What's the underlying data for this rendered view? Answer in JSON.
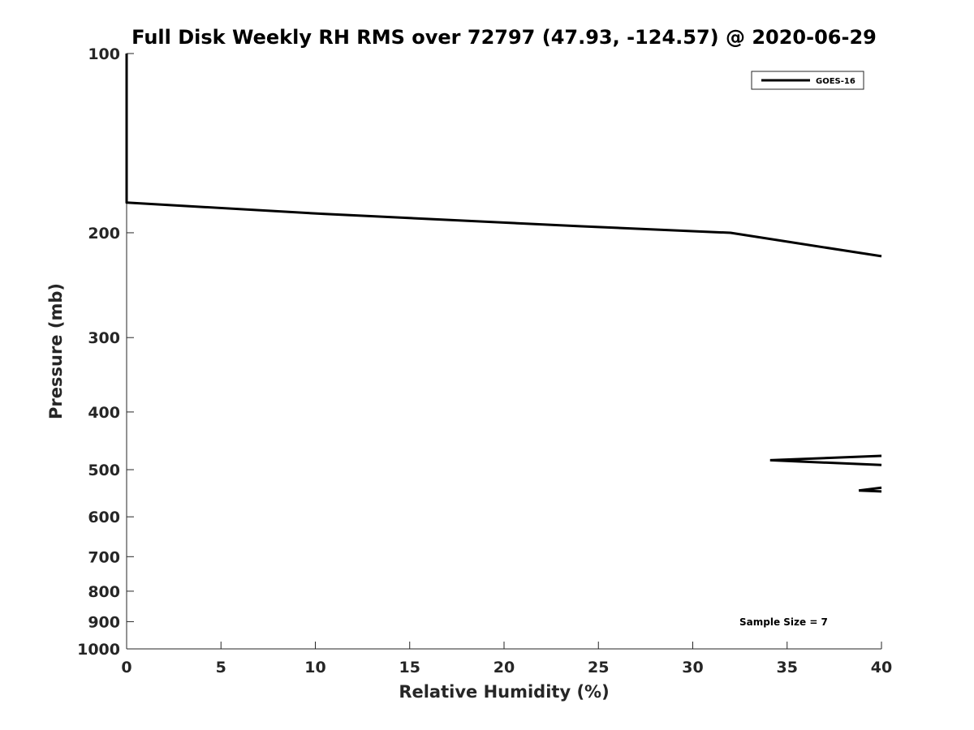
{
  "chart_data": {
    "type": "line",
    "title": "Full Disk Weekly RH RMS over 72797 (47.93, -124.57) @ 2020-06-29",
    "xlabel": "Relative Humidity (%)",
    "ylabel": "Pressure (mb)",
    "xlim": [
      0,
      40
    ],
    "ylim": [
      100,
      1000
    ],
    "yscale": "log",
    "y_reversed": true,
    "xticks": [
      0,
      5,
      10,
      15,
      20,
      25,
      30,
      35,
      40
    ],
    "yticks": [
      100,
      200,
      300,
      400,
      500,
      600,
      700,
      800,
      900,
      1000
    ],
    "grid": false,
    "legend": {
      "placement": "top-right",
      "entries": [
        "GOES-16"
      ]
    },
    "annotation": "Sample Size = 7",
    "series": [
      {
        "name": "GOES-16",
        "color": "#000000",
        "points": [
          {
            "x": 0.0,
            "p": 100
          },
          {
            "x": 0.0,
            "p": 110
          },
          {
            "x": 0.0,
            "p": 150
          },
          {
            "x": 0.0,
            "p": 178
          },
          {
            "x": 10.5,
            "p": 186
          },
          {
            "x": 24.0,
            "p": 195
          },
          {
            "x": 32.0,
            "p": 200
          },
          {
            "x": 35.0,
            "p": 207
          },
          {
            "x": 40.0,
            "p": 219
          }
        ],
        "segments": [
          [
            {
              "x": 40.0,
              "p": 474
            },
            {
              "x": 34.1,
              "p": 482
            },
            {
              "x": 40.0,
              "p": 491
            }
          ],
          [
            {
              "x": 40.0,
              "p": 536
            },
            {
              "x": 38.8,
              "p": 542
            },
            {
              "x": 40.0,
              "p": 544
            }
          ]
        ]
      }
    ]
  }
}
